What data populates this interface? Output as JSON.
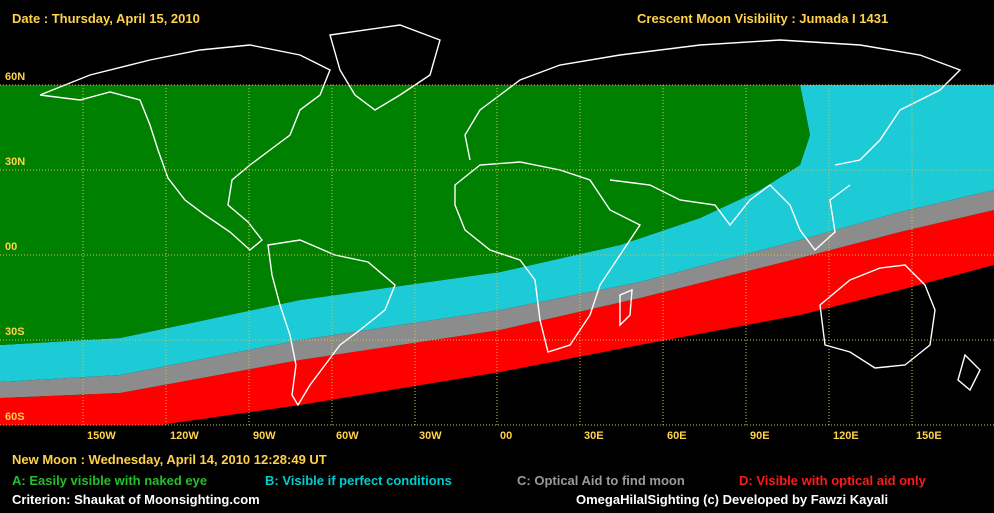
{
  "header": {
    "date": "Date : Thursday, April 15, 2010",
    "title": "Crescent Moon Visibility : Jumada I  1431"
  },
  "axes": {
    "lat_labels": [
      "60N",
      "30N",
      "00",
      "30S",
      "60S"
    ],
    "lon_labels": [
      "150W",
      "120W",
      "90W",
      "60W",
      "30W",
      "00",
      "30E",
      "60E",
      "90E",
      "120E",
      "150E"
    ]
  },
  "footer": {
    "new_moon": "New Moon : Wednesday, April 14, 2010  12:28:49  UT",
    "criterion": "Criterion: Shaukat of Moonsighting.com",
    "credit": "OmegaHilalSighting  (c)  Developed by Fawzi Kayali"
  },
  "legend": [
    {
      "text": "A: Easily visible with naked eye",
      "color": "#008000"
    },
    {
      "text": "B: Visible if perfect conditions",
      "color": "#00cccc"
    },
    {
      "text": "C: Optical Aid to find moon",
      "color": "#9a9a9a"
    },
    {
      "text": "D: Visible with optical aid only",
      "color": "#ff1a1a"
    }
  ],
  "colors": {
    "zone_a": "#008000",
    "zone_b": "#1ccbd6",
    "zone_c": "#8c8c8c",
    "zone_d": "#ff0000",
    "no_visibility": "#000000",
    "grid": "#d7c24a",
    "coastline": "#ffffff"
  }
}
